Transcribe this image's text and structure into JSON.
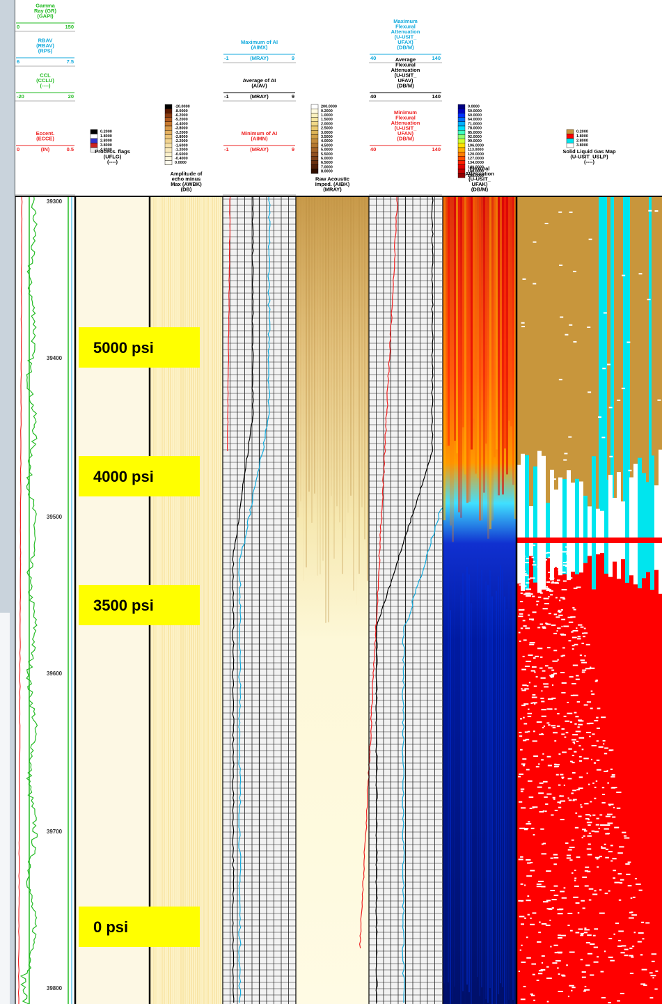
{
  "curve_headers": [
    {
      "lines": [
        "Gamma",
        "Ray (GR)",
        "(GAPI)"
      ],
      "scale": [
        "0",
        "150"
      ],
      "color": "#22bb22"
    },
    {
      "lines": [
        "RBAV",
        "(RBAV)",
        "(RPS)"
      ],
      "scale": [
        "6",
        "7.5"
      ],
      "color": "#11aadd"
    },
    {
      "lines": [
        "CCL",
        "(CCLU)",
        "(----)"
      ],
      "scale": [
        "-20",
        "20"
      ],
      "color": "#22bb22"
    },
    {
      "lines": [
        "Eccent.",
        "(ECCE)"
      ],
      "scale": [
        "0",
        "(IN)",
        "0.5"
      ],
      "color": "#ee2222"
    },
    {
      "lines": [
        "Maximum of AI",
        "(AIMX)"
      ],
      "scale": [
        "-1",
        "(MRAY)",
        "9"
      ],
      "color": "#11aadd"
    },
    {
      "lines": [
        "Average of AI",
        "(AIAV)"
      ],
      "scale": [
        "-1",
        "(MRAY)",
        "9"
      ],
      "color": "#000000"
    },
    {
      "lines": [
        "Minimum of AI",
        "(AIMN)"
      ],
      "scale": [
        "-1",
        "(MRAY)",
        "9"
      ],
      "color": "#ee2222"
    },
    {
      "lines": [
        "Maximum",
        "Flexural",
        "Attenuation",
        "(U-USIT_",
        "UFAX)",
        "(DB/M)"
      ],
      "scale": [
        "40",
        "140"
      ],
      "color": "#11aadd"
    },
    {
      "lines": [
        "Average",
        "Flexural",
        "Attenuation",
        "(U-USIT_",
        "UFAV)",
        "(DB/M)"
      ],
      "scale": [
        "40",
        "140"
      ],
      "color": "#000000"
    },
    {
      "lines": [
        "Minimum",
        "Flexural",
        "Attenuation",
        "(U-USIT_",
        "UFAN)",
        "(DB/M)"
      ],
      "scale": [
        "40",
        "140"
      ],
      "color": "#ee2222"
    }
  ],
  "image_headers": [
    {
      "lines": [
        "Process. flags",
        "(UFLG)",
        "(----)"
      ],
      "legend": [
        "0.2000",
        "1.8000",
        "2.8000",
        "3.8000",
        "4.8000"
      ],
      "legend_colors": [
        "#000000",
        "#ffffff",
        "#3333cc",
        "#cc2222",
        "#eeeeee"
      ]
    },
    {
      "lines": [
        "Amplitude of",
        "echo minus",
        "Max (AWBK)",
        "(DB)"
      ],
      "legend": [
        "-20.0000",
        "-8.0000",
        "-6.2000",
        "-5.2000",
        "-4.4000",
        "-3.8000",
        "-3.2000",
        "-2.8000",
        "-2.2000",
        "-1.6000",
        "-1.2000",
        "-0.6000",
        "-0.4000",
        "0.0000"
      ],
      "legend_colors": [
        "#000000",
        "#5a1a00",
        "#8a3a10",
        "#b05a20",
        "#c87a30",
        "#d89848",
        "#e4b060",
        "#ecc478",
        "#f2d490",
        "#f6e0a8",
        "#f9e9bc",
        "#fbf0cc",
        "#fdf6dc",
        "#fffbee"
      ]
    },
    {
      "lines": [
        "Raw Acoustic",
        "Imped. (AIBK)",
        "(MRAY)"
      ],
      "legend": [
        "200.0000",
        "0.2000",
        "1.0000",
        "1.5000",
        "2.0000",
        "2.5000",
        "3.0000",
        "3.5000",
        "4.0000",
        "4.5000",
        "5.0000",
        "5.5000",
        "6.0000",
        "6.5000",
        "7.0000",
        "8.0000"
      ],
      "legend_colors": [
        "#ffffff",
        "#fffbe0",
        "#fbf2c0",
        "#f6e6a0",
        "#f0d888",
        "#e8c870",
        "#dcb458",
        "#d0a048",
        "#c48c3c",
        "#b47830",
        "#a46428",
        "#905020",
        "#7c4018",
        "#683010",
        "#502008",
        "#301000"
      ]
    },
    {
      "lines": [
        "Flexural",
        "Attenuation",
        "(U-USIT_",
        "UFAK)",
        "(DB/M)"
      ],
      "legend": [
        "0.0000",
        "50.0000",
        "60.0000",
        "64.0000",
        "71.0000",
        "78.0000",
        "85.0000",
        "92.0000",
        "99.0000",
        "106.0000",
        "113.0000",
        "120.0000",
        "127.0000",
        "134.0000",
        "141.0000",
        "148.0000",
        "155.0000"
      ],
      "legend_colors": [
        "#000080",
        "#0000c0",
        "#0030ff",
        "#0070ff",
        "#00b0ff",
        "#00e0ff",
        "#40ffc0",
        "#90ff70",
        "#d0ff30",
        "#ffe000",
        "#ffb000",
        "#ff8000",
        "#ff5000",
        "#ff2000",
        "#e00000",
        "#c00000",
        "#900000"
      ]
    },
    {
      "lines": [
        "Solid Liquid Gas Map",
        "(U-USIT_USLP)",
        "(----)"
      ],
      "legend": [
        "0.2000",
        "1.8000",
        "2.8000",
        "3.8000"
      ],
      "legend_colors": [
        "#c8963c",
        "#ff0000",
        "#00e5ee",
        "#ffffff"
      ]
    }
  ],
  "depths": [
    "39300",
    "39400",
    "39500",
    "39600",
    "39700",
    "39800"
  ],
  "pressure_labels": [
    "5000 psi",
    "4000 psi",
    "3500 psi",
    "0 psi"
  ]
}
